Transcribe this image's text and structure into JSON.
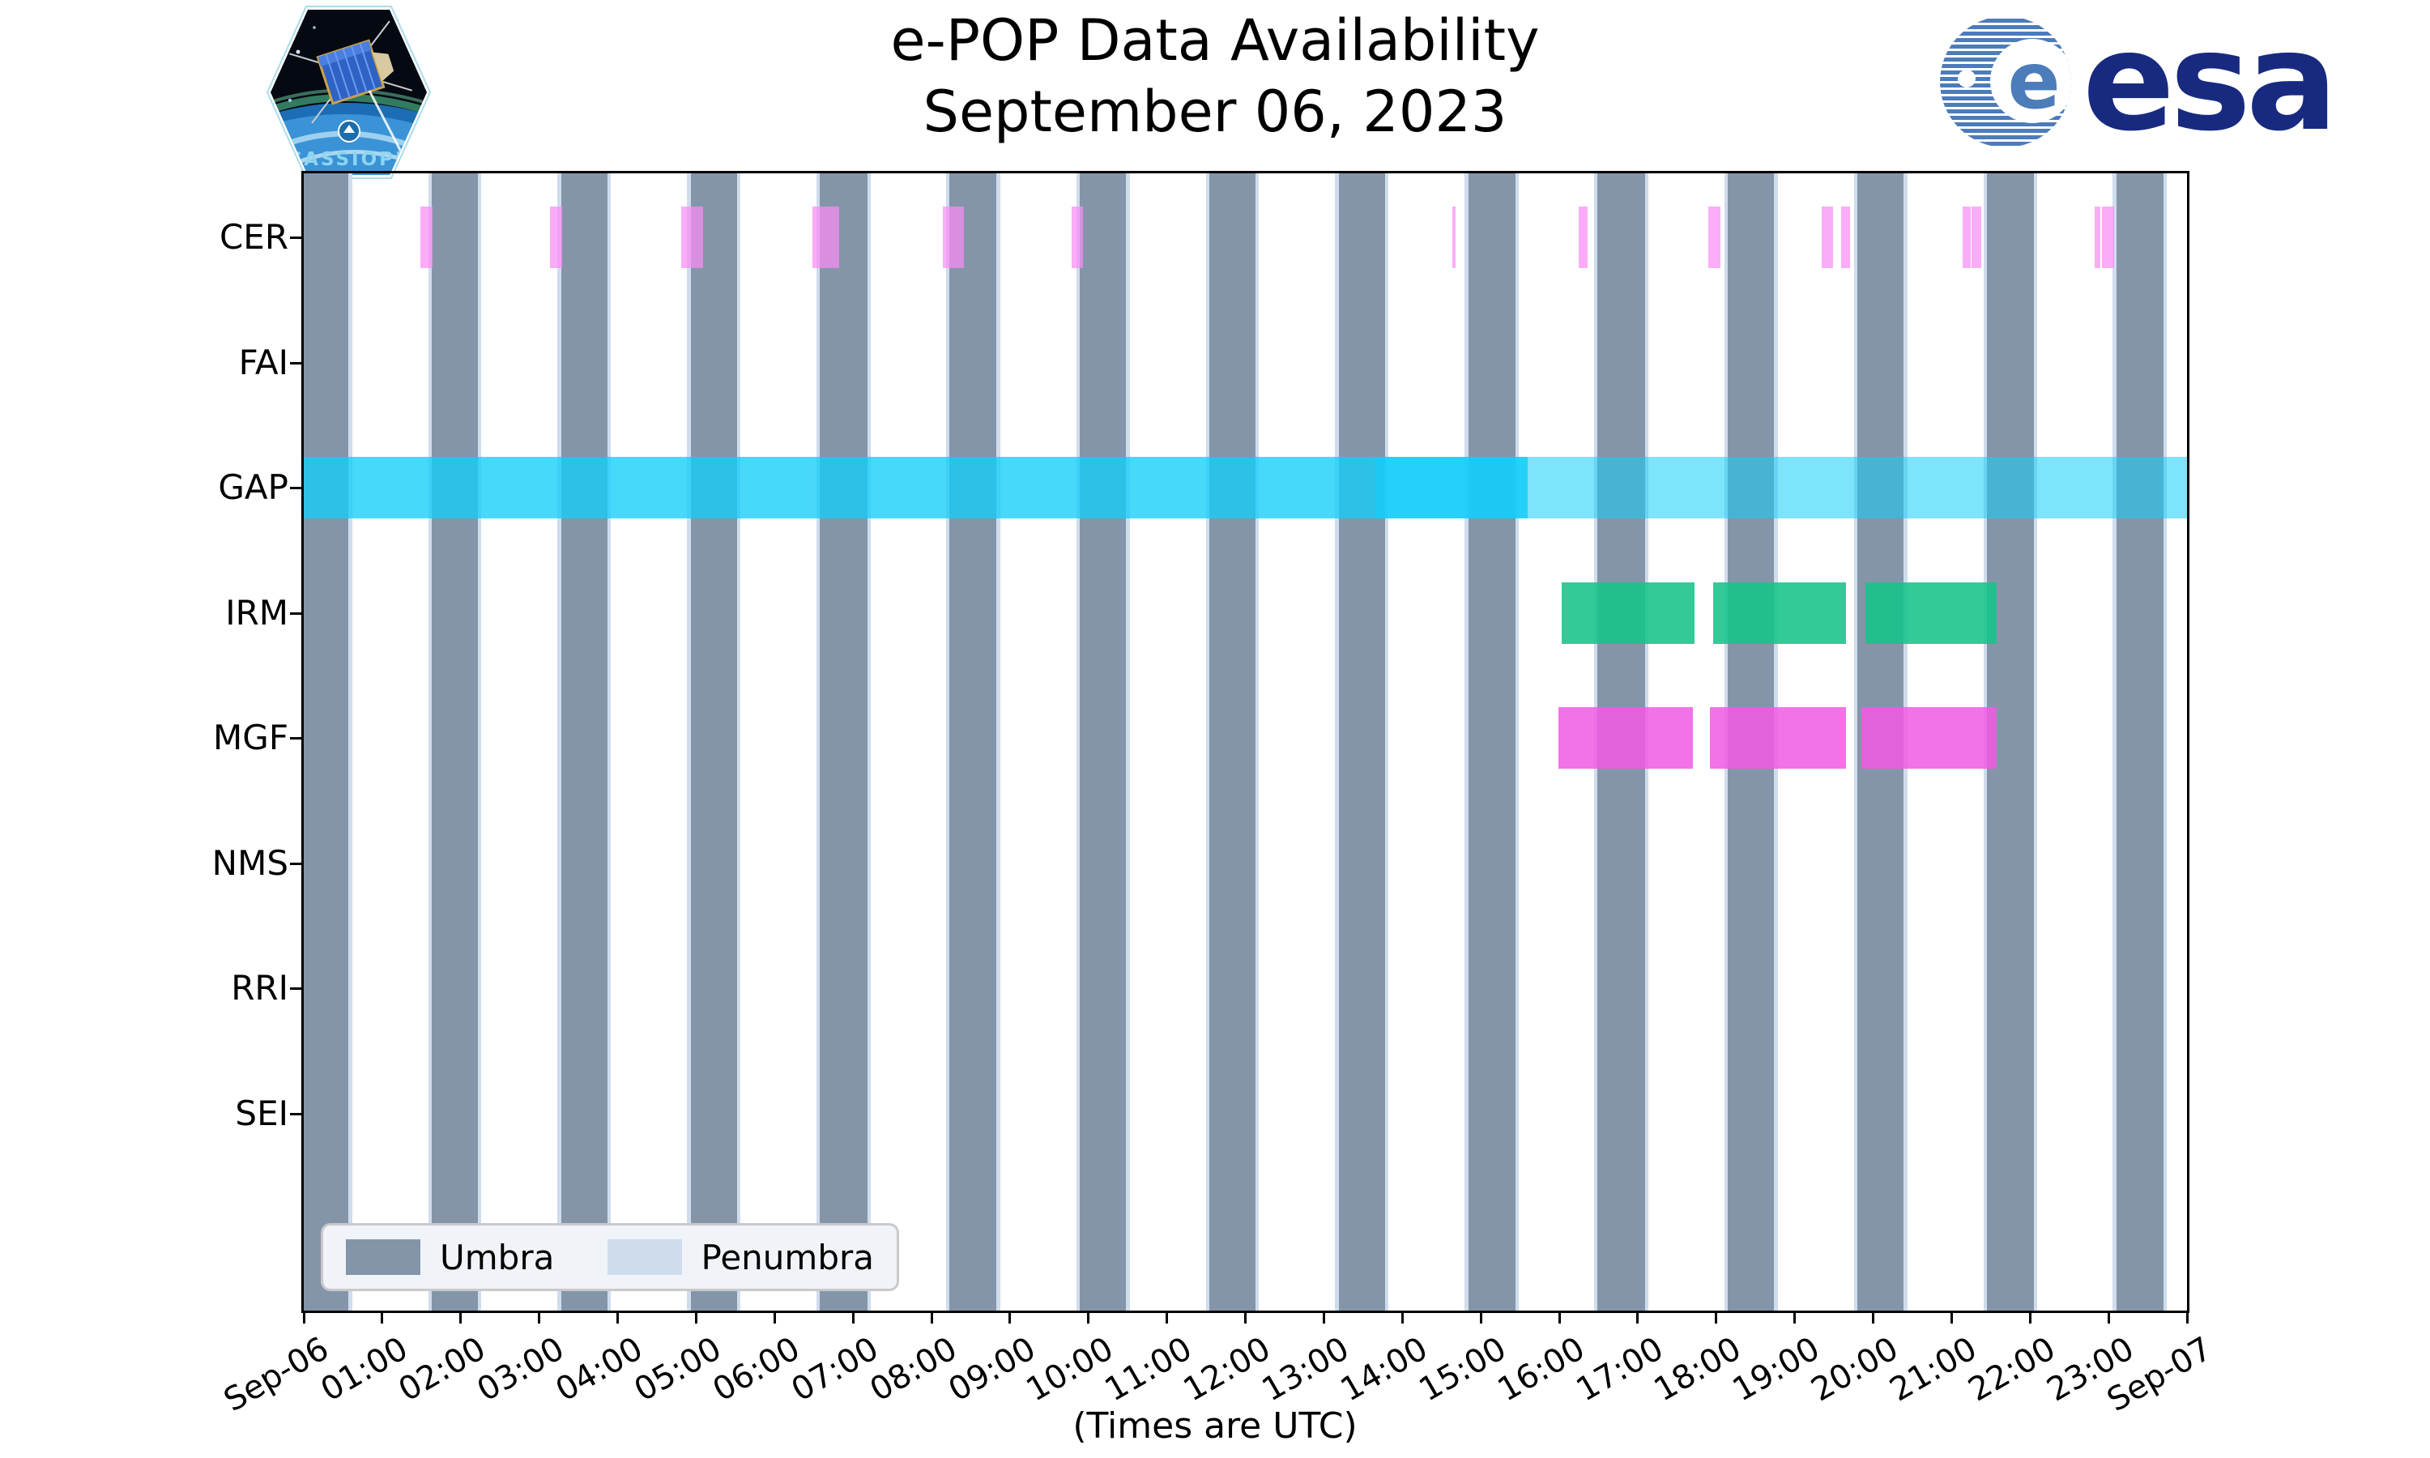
{
  "header": {
    "title": "e-POP Data Availability",
    "subtitle": "September 06, 2023"
  },
  "footer_note": "(Times are UTC)",
  "logos": {
    "cassiope_label": "CASSIOPE",
    "esa_wordmark": "esa",
    "esa_emblem_letter": "e"
  },
  "legend": {
    "items": [
      {
        "label": "Umbra",
        "color": "#8595a9"
      },
      {
        "label": "Penumbra",
        "color": "#cfdcec"
      }
    ]
  },
  "colors": {
    "umbra": "#8595a9",
    "penumbra": "#cfdcec",
    "gap_cyan_base": "rgba(20,205,248,0.78)",
    "gap_cyan_bright": "rgba(20,205,248,0.92)",
    "gap_cyan_pale": "rgba(20,205,248,0.55)",
    "cer_pink": "rgba(250,140,245,0.72)",
    "irm_green": "rgba(22,196,138,0.88)",
    "mgf_magenta": "rgba(240,90,228,0.85)",
    "esa_navy": "#182a80",
    "esa_blue": "#4c7cba",
    "axis_black": "#000000",
    "legend_bg": "#f0f3f8"
  },
  "chart_data": {
    "type": "availability-gantt",
    "title": "e-POP Data Availability",
    "subtitle": "September 06, 2023",
    "xlabel": "(Times are UTC)",
    "x_axis": {
      "range_hours": [
        0,
        24
      ],
      "tick_labels": [
        "Sep-06",
        "01:00",
        "02:00",
        "03:00",
        "04:00",
        "05:00",
        "06:00",
        "07:00",
        "08:00",
        "09:00",
        "10:00",
        "11:00",
        "12:00",
        "13:00",
        "14:00",
        "15:00",
        "16:00",
        "17:00",
        "18:00",
        "19:00",
        "20:00",
        "21:00",
        "22:00",
        "23:00",
        "Sep-07"
      ],
      "tick_label_rotation_deg": 30
    },
    "rows": [
      "CER",
      "FAI",
      "GAP",
      "IRM",
      "MGF",
      "NMS",
      "RRI",
      "SEI"
    ],
    "shadow_bands": {
      "note": "full-height vertical bands; satellite eclipse periods, orbital period ~99 min",
      "umbra_intervals_h": [
        [
          -0.03,
          0.57
        ],
        [
          1.63,
          2.22
        ],
        [
          3.28,
          3.87
        ],
        [
          4.93,
          5.52
        ],
        [
          6.58,
          7.18
        ],
        [
          8.23,
          8.83
        ],
        [
          9.89,
          10.48
        ],
        [
          11.54,
          12.13
        ],
        [
          13.19,
          13.78
        ],
        [
          14.84,
          15.44
        ],
        [
          16.49,
          17.09
        ],
        [
          18.15,
          18.74
        ],
        [
          19.8,
          20.39
        ],
        [
          21.45,
          22.05
        ],
        [
          23.1,
          23.7
        ]
      ],
      "penumbra_edge_width_h": 0.045
    },
    "series": [
      {
        "row": "CER",
        "shade": "cer_pink",
        "segments_h": [
          [
            1.49,
            1.64
          ],
          [
            3.14,
            3.29
          ],
          [
            4.81,
            5.09
          ],
          [
            6.48,
            6.82
          ],
          [
            8.14,
            8.41
          ],
          [
            9.79,
            9.93
          ],
          [
            14.64,
            14.68
          ],
          [
            16.25,
            16.36
          ],
          [
            17.9,
            18.05
          ],
          [
            19.34,
            19.49
          ],
          [
            19.59,
            19.71
          ],
          [
            21.14,
            21.24
          ],
          [
            21.25,
            21.38
          ],
          [
            22.82,
            22.9
          ],
          [
            22.92,
            23.07
          ]
        ]
      },
      {
        "row": "GAP",
        "shade": "gap_cyan_base",
        "segments_h": [
          [
            0.0,
            13.66
          ]
        ]
      },
      {
        "row": "GAP",
        "shade": "gap_cyan_bright",
        "segments_h": [
          [
            13.66,
            15.6
          ]
        ]
      },
      {
        "row": "GAP",
        "shade": "gap_cyan_pale",
        "segments_h": [
          [
            15.6,
            24.0
          ]
        ]
      },
      {
        "row": "IRM",
        "shade": "irm_green",
        "segments_h": [
          [
            16.03,
            17.72
          ],
          [
            17.96,
            19.65
          ],
          [
            19.9,
            21.57
          ]
        ]
      },
      {
        "row": "MGF",
        "shade": "mgf_magenta",
        "segments_h": [
          [
            15.99,
            17.7
          ],
          [
            17.92,
            19.65
          ],
          [
            19.85,
            21.57
          ]
        ]
      }
    ]
  }
}
